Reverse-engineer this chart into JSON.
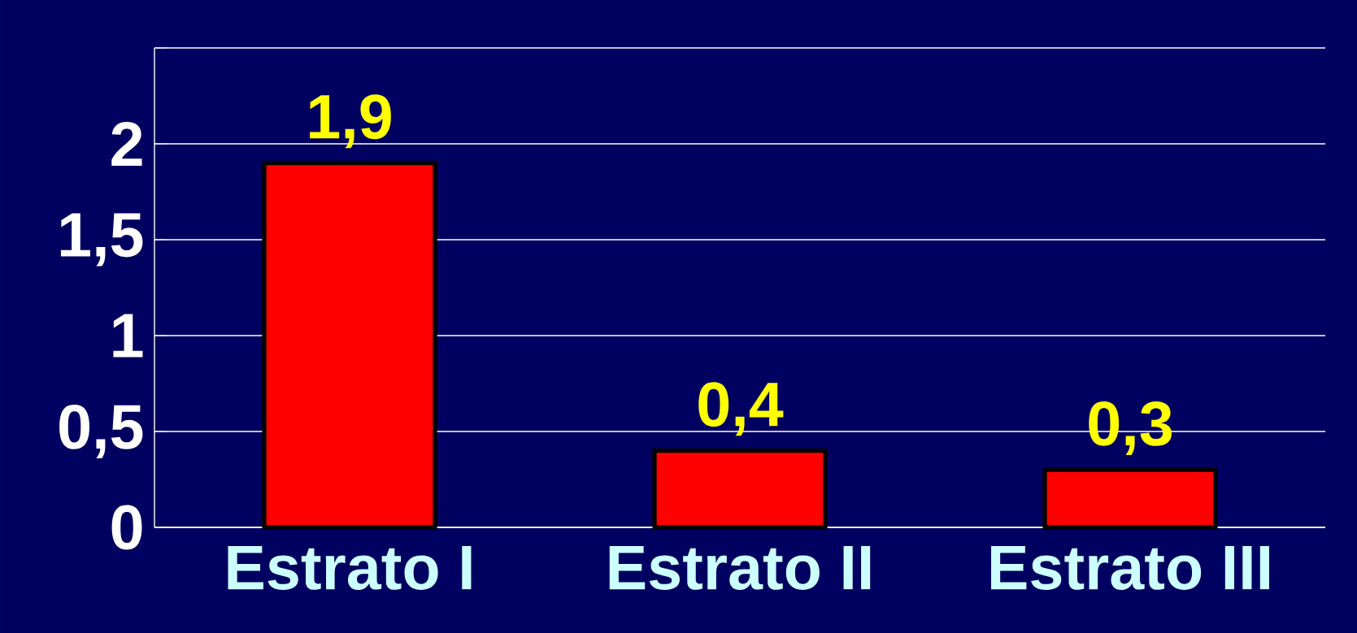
{
  "chart_data": {
    "type": "bar",
    "categories": [
      "Estrato I",
      "Estrato II",
      "Estrato III"
    ],
    "values": [
      1.9,
      0.4,
      0.3
    ],
    "value_labels": [
      "1,9",
      "0,4",
      "0,3"
    ],
    "color": "#ff0000",
    "ylim": [
      0,
      2.5
    ],
    "yticks": [
      {
        "value": 0,
        "label": "0"
      },
      {
        "value": 0.5,
        "label": "0,5"
      },
      {
        "value": 1,
        "label": "1"
      },
      {
        "value": 1.5,
        "label": "1,5"
      },
      {
        "value": 2,
        "label": "2"
      },
      {
        "value": 2.5,
        "label": null
      }
    ],
    "grid": "y"
  }
}
